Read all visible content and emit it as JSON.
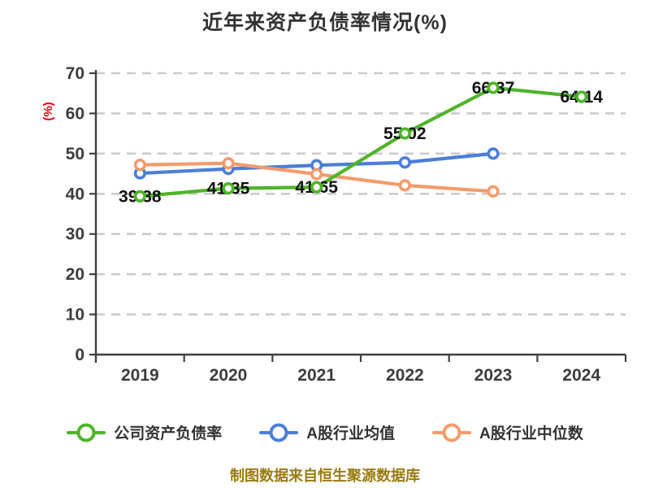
{
  "page": {
    "title": "近年来资产负债率情况(%)",
    "footer_note": "制图数据来自恒生聚源数据库"
  },
  "colors": {
    "background": "#ffffff",
    "title": "#333333",
    "axis": "#3f3f3f",
    "grid": "#cbcbcb",
    "tick_label": "#3c3c3c",
    "data_label": "#111111",
    "ylabel": "#e60000",
    "footer": "#9a7b10"
  },
  "chart_data": {
    "type": "line",
    "title": "近年来资产负债率情况(%)",
    "xlabel": "",
    "ylabel": "(%)",
    "categories": [
      "2019",
      "2020",
      "2021",
      "2022",
      "2023",
      "2024"
    ],
    "ylim": [
      0,
      70
    ],
    "ytick_interval": 10,
    "yticks": [
      0,
      10,
      20,
      30,
      40,
      50,
      60,
      70
    ],
    "grid": "horizontal dashed",
    "legend_position": "bottom",
    "marker": "circle-white-fill",
    "series": [
      {
        "name": "公司资产负债率",
        "color": "#4fb42a",
        "values": [
          39.38,
          41.35,
          41.65,
          55.02,
          66.37,
          64.14
        ],
        "point_labels": true
      },
      {
        "name": "A股行业均值",
        "color": "#4c7ed8",
        "values": [
          45.1,
          46.2,
          47.1,
          47.8,
          50.0
        ],
        "point_labels": false
      },
      {
        "name": "A股行业中位数",
        "color": "#f49b6c",
        "values": [
          47.2,
          47.6,
          44.9,
          42.1,
          40.6
        ],
        "point_labels": false
      }
    ],
    "point_label_texts": [
      "39.38",
      "41.35",
      "41.65",
      "55.02",
      "66.37",
      "64.14"
    ]
  },
  "legend": {
    "items": [
      {
        "label": "公司资产负债率",
        "color": "#4fb42a"
      },
      {
        "label": "A股行业均值",
        "color": "#4c7ed8"
      },
      {
        "label": "A股行业中位数",
        "color": "#f49b6c"
      }
    ]
  }
}
